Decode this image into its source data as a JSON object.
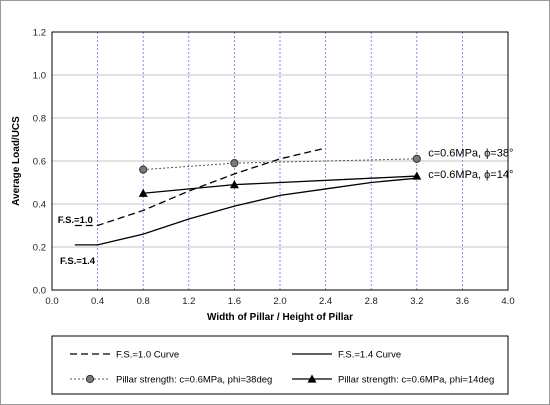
{
  "chart_data": {
    "type": "line",
    "title": "",
    "xlabel": "Width of Pillar / Height of Pillar",
    "ylabel": "Average Load/UCS",
    "xlim": [
      0.0,
      4.0
    ],
    "ylim": [
      0.0,
      1.2
    ],
    "x_ticks": [
      "0.0",
      "0.4",
      "0.8",
      "1.2",
      "1.6",
      "2.0",
      "2.4",
      "2.8",
      "3.2",
      "3.6",
      "4.0"
    ],
    "y_ticks": [
      "0.0",
      "0.2",
      "0.4",
      "0.6",
      "0.8",
      "1.0",
      "1.2"
    ],
    "grid": true,
    "legend_position": "bottom",
    "series": [
      {
        "name": "F.S.=1.0 Curve",
        "style": "dashed",
        "marker": "none",
        "color": "#000000",
        "x": [
          0.2,
          0.4,
          0.8,
          1.2,
          1.6,
          2.0,
          2.4
        ],
        "y": [
          0.3,
          0.3,
          0.37,
          0.46,
          0.54,
          0.61,
          0.66
        ]
      },
      {
        "name": "F.S.=1.4 Curve",
        "style": "solid",
        "marker": "none",
        "color": "#000000",
        "x": [
          0.2,
          0.4,
          0.8,
          1.2,
          1.6,
          2.0,
          2.4,
          2.8,
          3.2
        ],
        "y": [
          0.21,
          0.21,
          0.26,
          0.33,
          0.39,
          0.44,
          0.47,
          0.5,
          0.52
        ]
      },
      {
        "name": "Pillar strength: c=0.6MPa, phi=38deg",
        "style": "dotted",
        "marker": "circle",
        "color": "#555555",
        "x": [
          0.8,
          1.6,
          3.2
        ],
        "y": [
          0.56,
          0.59,
          0.61
        ]
      },
      {
        "name": "Pillar strength: c=0.6MPa, phi=14deg",
        "style": "solid",
        "marker": "triangle",
        "color": "#000000",
        "x": [
          0.8,
          1.6,
          3.2
        ],
        "y": [
          0.45,
          0.49,
          0.53
        ]
      }
    ],
    "annotations": [
      {
        "text": "c=0.6MPa, ϕ=38°",
        "x": 3.3,
        "y": 0.64,
        "weight": "normal"
      },
      {
        "text": "c=0.6MPa, ϕ=14°",
        "x": 3.3,
        "y": 0.54,
        "weight": "normal"
      },
      {
        "text": "F.S.=1.0",
        "x": 0.05,
        "y": 0.33,
        "weight": "bold"
      },
      {
        "text": "F.S.=1.4",
        "x": 0.07,
        "y": 0.14,
        "weight": "bold"
      }
    ]
  }
}
